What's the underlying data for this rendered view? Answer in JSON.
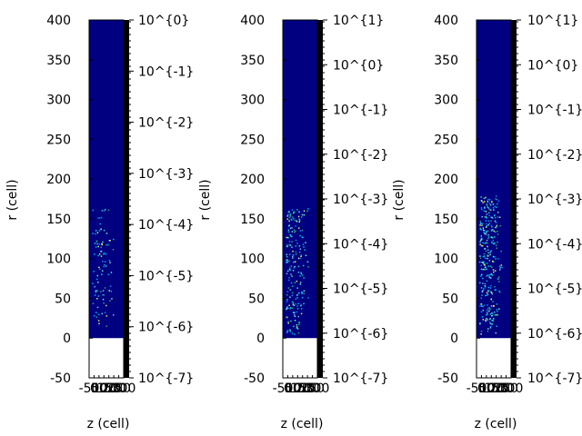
{
  "chart_data": [
    {
      "type": "heatmap",
      "xlabel": "z (cell)",
      "ylabel": "r (cell)",
      "xlim": [
        -50,
        300
      ],
      "ylim": [
        -50,
        400
      ],
      "x_ticks": [
        "-50",
        "0",
        "50",
        "100",
        "150",
        "200",
        "250",
        "300"
      ],
      "y_ticks": [
        "-50",
        "0",
        "50",
        "100",
        "150",
        "200",
        "250",
        "300",
        "350",
        "400"
      ],
      "colorbar": {
        "scale": "log",
        "labels": [
          "10^{-7}",
          "10^{-6}",
          "10^{-5}",
          "10^{-4}",
          "10^{-3}",
          "10^{-2}",
          "10^{-1}",
          "10^{0}"
        ]
      },
      "background_color": "#000080",
      "hot_region_r": [
        10,
        165
      ],
      "hot_points": 95
    },
    {
      "type": "heatmap",
      "xlabel": "z (cell)",
      "ylabel": "r (cell)",
      "xlim": [
        -50,
        300
      ],
      "ylim": [
        -50,
        400
      ],
      "x_ticks": [
        "-50",
        "0",
        "50",
        "100",
        "150",
        "200",
        "250",
        "300"
      ],
      "y_ticks": [
        "-50",
        "0",
        "50",
        "100",
        "150",
        "200",
        "250",
        "300",
        "350",
        "400"
      ],
      "colorbar": {
        "scale": "log",
        "labels": [
          "10^{-7}",
          "10^{-6}",
          "10^{-5}",
          "10^{-4}",
          "10^{-3}",
          "10^{-2}",
          "10^{-1}",
          "10^{0}",
          "10^{1}"
        ]
      },
      "background_color": "#000080",
      "hot_region_r": [
        5,
        165
      ],
      "hot_points": 200
    },
    {
      "type": "heatmap",
      "xlabel": "z (cell)",
      "ylabel": "r (cell)",
      "xlim": [
        -50,
        300
      ],
      "ylim": [
        -50,
        400
      ],
      "x_ticks": [
        "-50",
        "0",
        "50",
        "100",
        "150",
        "200",
        "250",
        "300"
      ],
      "y_ticks": [
        "-50",
        "0",
        "50",
        "100",
        "150",
        "200",
        "250",
        "300",
        "350",
        "400"
      ],
      "colorbar": {
        "scale": "log",
        "labels": [
          "10^{-7}",
          "10^{-6}",
          "10^{-5}",
          "10^{-4}",
          "10^{-3}",
          "10^{-2}",
          "10^{-1}",
          "10^{0}",
          "10^{1}"
        ]
      },
      "background_color": "#000080",
      "hot_region_r": [
        5,
        180
      ],
      "hot_points": 300
    }
  ]
}
